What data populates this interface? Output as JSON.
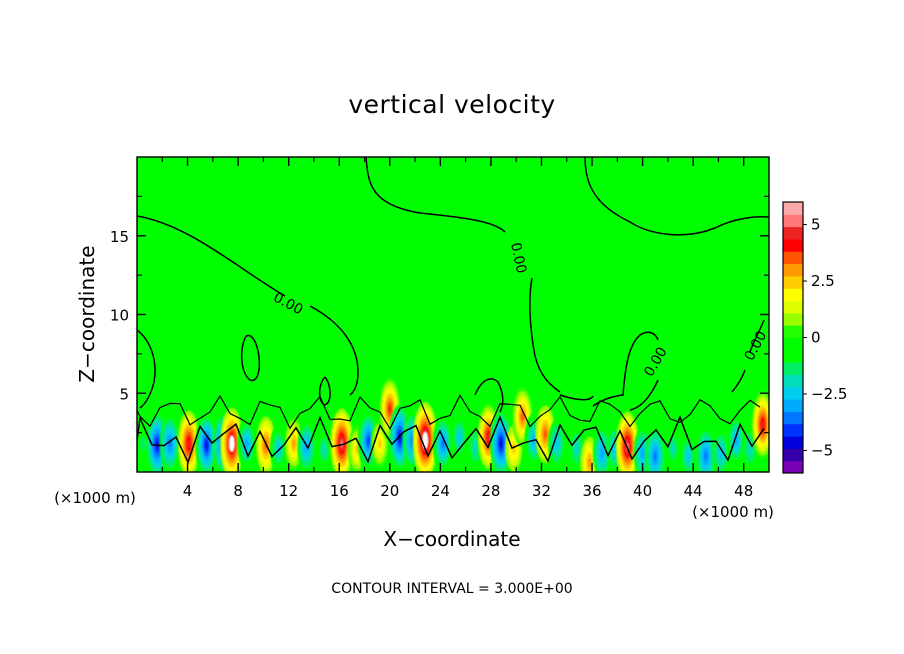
{
  "chart_data": {
    "type": "heatmap",
    "title": "vertical velocity",
    "xlabel": "X−coordinate",
    "ylabel": "Z−coordinate",
    "x_unit_left": "(×1000 m)",
    "x_unit_right": "(×1000 m)",
    "xlim": [
      0,
      50
    ],
    "ylim": [
      0,
      20
    ],
    "x_ticks": [
      4,
      8,
      12,
      16,
      20,
      24,
      28,
      32,
      36,
      40,
      44,
      48
    ],
    "y_ticks": [
      5,
      10,
      15
    ],
    "contour_interval_text": "CONTOUR INTERVAL = 3.000E+00",
    "contour_labels": [
      "0.00",
      "0.00",
      "0.00",
      "0.00"
    ],
    "colorbar": {
      "range": [
        -6,
        6
      ],
      "tick_values": [
        5,
        2.5,
        0,
        -2.5,
        -5
      ],
      "tick_labels": [
        "5",
        "2.5",
        "0",
        "−2.5",
        "−5"
      ],
      "colors": [
        "#7a00b8",
        "#3300aa",
        "#0000dd",
        "#0033ff",
        "#0077ff",
        "#00aaff",
        "#00ccee",
        "#00ddbb",
        "#00ee66",
        "#00ff00",
        "#00ff00",
        "#22ff00",
        "#99ff00",
        "#ddff00",
        "#ffff00",
        "#ffcc00",
        "#ff9900",
        "#ff5500",
        "#ff0000",
        "#ee2222",
        "#ff7777",
        "#ffaaaa"
      ]
    },
    "background_value": 0,
    "cells": [
      {
        "x": 0.5,
        "z": 1.8,
        "w": -1.5
      },
      {
        "x": 1.6,
        "z": 1.7,
        "w": -4.5
      },
      {
        "x": 2.6,
        "z": 1.8,
        "w": -3.5
      },
      {
        "x": 4.1,
        "z": 1.8,
        "w": 4.5
      },
      {
        "x": 5.5,
        "z": 1.7,
        "w": -4.8
      },
      {
        "x": 6.8,
        "z": 1.8,
        "w": -4.0
      },
      {
        "x": 7.5,
        "z": 1.8,
        "w": 5.2
      },
      {
        "x": 8.7,
        "z": 1.8,
        "w": -3.2
      },
      {
        "x": 10.2,
        "z": 1.7,
        "w": 3.5
      },
      {
        "x": 11.2,
        "z": 1.5,
        "w": -2.5
      },
      {
        "x": 12.4,
        "z": 1.8,
        "w": 3.2
      },
      {
        "x": 13.4,
        "z": 1.6,
        "w": -2.8
      },
      {
        "x": 14.8,
        "z": 1.4,
        "w": -2.0
      },
      {
        "x": 16.2,
        "z": 1.8,
        "w": 5.0
      },
      {
        "x": 17.4,
        "z": 1.4,
        "w": 2.5
      },
      {
        "x": 18.3,
        "z": 2.0,
        "w": -4.2
      },
      {
        "x": 19.2,
        "z": 1.8,
        "w": 2.5
      },
      {
        "x": 20.0,
        "z": 4.0,
        "w": 4.2
      },
      {
        "x": 20.8,
        "z": 2.2,
        "w": -4.5
      },
      {
        "x": 21.8,
        "z": 2.0,
        "w": -3.5
      },
      {
        "x": 22.8,
        "z": 2.0,
        "w": 5.8
      },
      {
        "x": 24.2,
        "z": 1.8,
        "w": -3.8
      },
      {
        "x": 25.5,
        "z": 2.2,
        "w": -2.5
      },
      {
        "x": 26.8,
        "z": 1.6,
        "w": -1.8
      },
      {
        "x": 27.8,
        "z": 2.2,
        "w": 4.8
      },
      {
        "x": 28.8,
        "z": 1.8,
        "w": -4.6
      },
      {
        "x": 29.8,
        "z": 1.5,
        "w": 2.2
      },
      {
        "x": 30.5,
        "z": 3.5,
        "w": 3.8
      },
      {
        "x": 31.4,
        "z": 2.0,
        "w": -3.2
      },
      {
        "x": 32.3,
        "z": 2.4,
        "w": 3.5
      },
      {
        "x": 33.2,
        "z": 1.8,
        "w": -2.4
      },
      {
        "x": 34.8,
        "z": 1.5,
        "w": -1.8
      },
      {
        "x": 35.8,
        "z": 0.6,
        "w": 2.8
      },
      {
        "x": 36.8,
        "z": 1.2,
        "w": -3.0
      },
      {
        "x": 37.8,
        "z": 1.5,
        "w": -2.4
      },
      {
        "x": 38.8,
        "z": 1.6,
        "w": 5.0
      },
      {
        "x": 40.0,
        "z": 1.2,
        "w": -2.8
      },
      {
        "x": 41.0,
        "z": 1.0,
        "w": -3.6
      },
      {
        "x": 42.4,
        "z": 1.5,
        "w": -2.0
      },
      {
        "x": 43.6,
        "z": 1.0,
        "w": -2.6
      },
      {
        "x": 45.0,
        "z": 1.0,
        "w": -3.6
      },
      {
        "x": 46.2,
        "z": 1.2,
        "w": -2.4
      },
      {
        "x": 47.4,
        "z": 2.0,
        "w": -3.2
      },
      {
        "x": 48.5,
        "z": 1.5,
        "w": -1.8
      },
      {
        "x": 49.5,
        "z": 3.0,
        "w": 4.8
      }
    ]
  }
}
